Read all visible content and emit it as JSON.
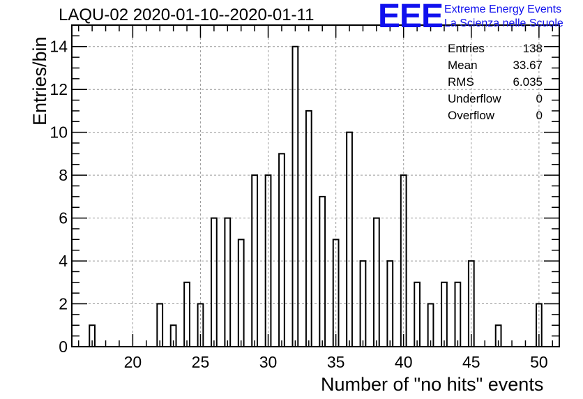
{
  "header": {
    "title": "LAQU-02 2020-01-10--2020-01-11"
  },
  "logo": {
    "letters": "EEE",
    "line1": "Extreme Energy Events",
    "line2": "La Scienza nelle Scuole",
    "color": "#1010ee"
  },
  "stats_box": {
    "rows": [
      {
        "label": "Entries",
        "value": "138"
      },
      {
        "label": "Mean",
        "value": "33.67"
      },
      {
        "label": "RMS",
        "value": "6.035"
      },
      {
        "label": "Underflow",
        "value": "0"
      },
      {
        "label": "Overflow",
        "value": "0"
      }
    ]
  },
  "chart_data": {
    "type": "bar",
    "style": "histogram-outline",
    "title": "LAQU-02 2020-01-10--2020-01-11",
    "xlabel": "Number of \"no hits\" events",
    "ylabel": "Entries/bin",
    "xlim": [
      15.5,
      51.5
    ],
    "ylim": [
      0,
      15
    ],
    "x_ticks": [
      20,
      25,
      30,
      35,
      40,
      45,
      50
    ],
    "y_ticks": [
      0,
      2,
      4,
      6,
      8,
      10,
      12,
      14
    ],
    "grid": true,
    "bin_width": 0.5,
    "bar_fraction": 0.8,
    "line_color": "#000000",
    "bins": [
      {
        "x": 17,
        "count": 1
      },
      {
        "x": 22,
        "count": 2
      },
      {
        "x": 23,
        "count": 1
      },
      {
        "x": 24,
        "count": 3
      },
      {
        "x": 25,
        "count": 2
      },
      {
        "x": 26,
        "count": 6
      },
      {
        "x": 27,
        "count": 6
      },
      {
        "x": 28,
        "count": 5
      },
      {
        "x": 29,
        "count": 8
      },
      {
        "x": 30,
        "count": 8
      },
      {
        "x": 31,
        "count": 9
      },
      {
        "x": 32,
        "count": 14
      },
      {
        "x": 33,
        "count": 11
      },
      {
        "x": 34,
        "count": 7
      },
      {
        "x": 35,
        "count": 5
      },
      {
        "x": 36,
        "count": 10
      },
      {
        "x": 37,
        "count": 4
      },
      {
        "x": 38,
        "count": 6
      },
      {
        "x": 39,
        "count": 4
      },
      {
        "x": 40,
        "count": 8
      },
      {
        "x": 41,
        "count": 3
      },
      {
        "x": 42,
        "count": 2
      },
      {
        "x": 43,
        "count": 3
      },
      {
        "x": 44,
        "count": 3
      },
      {
        "x": 45,
        "count": 4
      },
      {
        "x": 47,
        "count": 1
      },
      {
        "x": 50,
        "count": 2
      }
    ]
  }
}
